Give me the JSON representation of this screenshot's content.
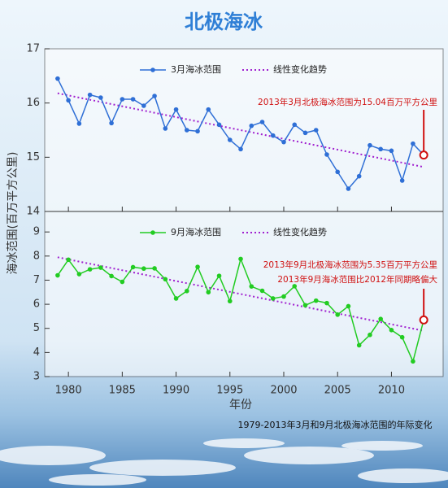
{
  "title": "北极海冰",
  "ylabel": "海冰范围(百万平方公里)",
  "xlabel": "年份",
  "caption": "1979-2013年3月和9月北极海冰范围的年际变化",
  "chart_data": [
    {
      "type": "line",
      "x": [
        1979,
        1980,
        1981,
        1982,
        1983,
        1984,
        1985,
        1986,
        1987,
        1988,
        1989,
        1990,
        1991,
        1992,
        1993,
        1994,
        1995,
        1996,
        1997,
        1998,
        1999,
        2000,
        2001,
        2002,
        2003,
        2004,
        2005,
        2006,
        2007,
        2008,
        2009,
        2010,
        2011,
        2012,
        2013
      ],
      "series": [
        {
          "name": "3月海冰范围",
          "color": "#2f6fd6",
          "values": [
            16.45,
            16.05,
            15.62,
            16.15,
            16.1,
            15.63,
            16.07,
            16.07,
            15.95,
            16.13,
            15.53,
            15.88,
            15.5,
            15.48,
            15.88,
            15.6,
            15.32,
            15.15,
            15.58,
            15.65,
            15.4,
            15.28,
            15.6,
            15.45,
            15.5,
            15.05,
            14.73,
            14.42,
            14.65,
            15.22,
            15.15,
            15.12,
            14.57,
            15.25,
            15.04
          ]
        }
      ],
      "trend": {
        "name": "线性变化趋势",
        "color": "#a020d0",
        "x": [
          1979,
          2013
        ],
        "values": [
          16.18,
          14.82
        ]
      },
      "xlim": [
        1977.8,
        2014.8
      ],
      "xticks": [
        1980,
        1985,
        1990,
        1995,
        2000,
        2005,
        2010
      ],
      "ylim": [
        14,
        17
      ],
      "yticks": [
        14,
        15,
        16,
        17
      ],
      "annotations": [
        "2013年3月北极海冰范围为15.04百万平方公里"
      ]
    },
    {
      "type": "line",
      "x": [
        1979,
        1980,
        1981,
        1982,
        1983,
        1984,
        1985,
        1986,
        1987,
        1988,
        1989,
        1990,
        1991,
        1992,
        1993,
        1994,
        1995,
        1996,
        1997,
        1998,
        1999,
        2000,
        2001,
        2002,
        2003,
        2004,
        2005,
        2006,
        2007,
        2008,
        2009,
        2010,
        2011,
        2012,
        2013
      ],
      "series": [
        {
          "name": "9月海冰范围",
          "color": "#22cc22",
          "values": [
            7.2,
            7.85,
            7.25,
            7.45,
            7.52,
            7.17,
            6.93,
            7.54,
            7.48,
            7.49,
            7.04,
            6.24,
            6.55,
            7.55,
            6.5,
            7.18,
            6.13,
            7.88,
            6.74,
            6.56,
            6.24,
            6.32,
            6.75,
            5.96,
            6.15,
            6.05,
            5.57,
            5.92,
            4.3,
            4.73,
            5.39,
            4.93,
            4.63,
            3.63,
            5.35
          ]
        }
      ],
      "trend": {
        "name": "线性变化趋势",
        "color": "#a020d0",
        "x": [
          1979,
          2013
        ],
        "values": [
          7.95,
          4.9
        ]
      },
      "xlim": [
        1977.8,
        2014.8
      ],
      "xticks": [
        1980,
        1985,
        1990,
        1995,
        2000,
        2005,
        2010
      ],
      "ylim": [
        3,
        9.85
      ],
      "yticks": [
        3,
        4,
        5,
        6,
        7,
        8,
        9
      ],
      "annotations": [
        "2013年9月北极海冰范围为5.35百万平方公里",
        "2013年9月海冰范围比2012年同期略偏大"
      ]
    }
  ]
}
